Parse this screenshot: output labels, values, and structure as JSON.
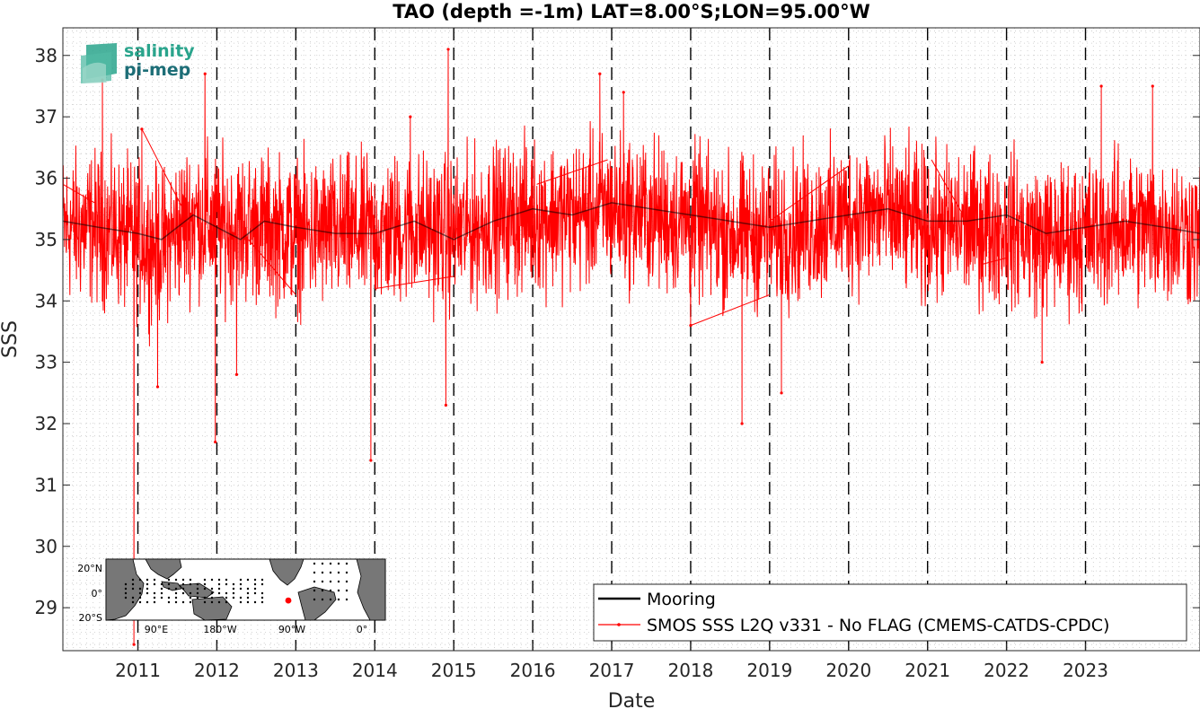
{
  "logo": {
    "line1": "salinity",
    "line2": "pi-mep"
  },
  "chart_data": {
    "type": "line",
    "title": "TAO (depth =-1m) LAT=8.00°S;LON=95.00°W",
    "xlabel": "Date",
    "ylabel": "SSS",
    "xlim": [
      2010.05,
      2024.45
    ],
    "ylim": [
      28.3,
      38.45
    ],
    "x_ticks": [
      2011,
      2012,
      2013,
      2014,
      2015,
      2016,
      2017,
      2018,
      2019,
      2020,
      2021,
      2022,
      2023
    ],
    "y_ticks": [
      29,
      30,
      31,
      32,
      33,
      34,
      35,
      36,
      37,
      38
    ],
    "grid": "minor dotted",
    "year_markers": "dashed vertical lines at each year",
    "legend_position": "bottom-right",
    "legend": [
      "Mooring",
      "SMOS SSS L2Q v331 - No FLAG  (CMEMS-CATDS-CPDC)"
    ],
    "colors": {
      "mooring": "#000000",
      "smos": "#ff0000"
    },
    "series": [
      {
        "name": "Mooring",
        "x": [
          2010.05,
          2010.5,
          2011.0,
          2011.3,
          2011.7,
          2012.0,
          2012.3,
          2012.6,
          2013.0,
          2013.5,
          2014.0,
          2014.5,
          2015.0,
          2015.5,
          2016.0,
          2016.5,
          2017.0,
          2017.5,
          2018.0,
          2018.5,
          2019.0,
          2019.5,
          2020.0,
          2020.5,
          2021.0,
          2021.5,
          2022.0,
          2022.5,
          2023.0,
          2023.5,
          2024.0,
          2024.45
        ],
        "y": [
          35.3,
          35.2,
          35.1,
          35.0,
          35.4,
          35.2,
          35.0,
          35.3,
          35.2,
          35.1,
          35.1,
          35.3,
          35.0,
          35.3,
          35.5,
          35.4,
          35.6,
          35.5,
          35.4,
          35.3,
          35.2,
          35.3,
          35.4,
          35.5,
          35.3,
          35.3,
          35.4,
          35.1,
          35.2,
          35.3,
          35.2,
          35.1
        ]
      },
      {
        "name": "SMOS SSS L2Q v331 - No FLAG  (CMEMS-CATDS-CPDC)",
        "baseline": [
          [
            2010.05,
            35.2
          ],
          [
            2010.5,
            35.2
          ],
          [
            2011.0,
            35.0
          ],
          [
            2011.3,
            34.9
          ],
          [
            2011.7,
            35.4
          ],
          [
            2012.0,
            35.2
          ],
          [
            2012.5,
            35.2
          ],
          [
            2013.0,
            35.1
          ],
          [
            2013.5,
            35.1
          ],
          [
            2014.0,
            35.1
          ],
          [
            2014.5,
            35.2
          ],
          [
            2015.0,
            35.1
          ],
          [
            2015.5,
            35.3
          ],
          [
            2016.0,
            35.4
          ],
          [
            2016.5,
            35.4
          ],
          [
            2017.0,
            35.5
          ],
          [
            2017.5,
            35.4
          ],
          [
            2018.0,
            35.3
          ],
          [
            2018.5,
            35.1
          ],
          [
            2019.0,
            35.1
          ],
          [
            2019.5,
            35.2
          ],
          [
            2020.0,
            35.4
          ],
          [
            2020.5,
            35.4
          ],
          [
            2021.0,
            35.2
          ],
          [
            2021.5,
            35.2
          ],
          [
            2022.0,
            35.2
          ],
          [
            2022.5,
            35.0
          ],
          [
            2023.0,
            35.1
          ],
          [
            2023.5,
            35.2
          ],
          [
            2024.0,
            35.2
          ],
          [
            2024.45,
            35.1
          ]
        ],
        "spread": 0.7,
        "spikes": [
          [
            2010.55,
            37.6
          ],
          [
            2010.95,
            28.4
          ],
          [
            2011.05,
            36.8
          ],
          [
            2011.25,
            32.6
          ],
          [
            2011.85,
            37.7
          ],
          [
            2011.98,
            31.7
          ],
          [
            2012.25,
            32.8
          ],
          [
            2013.95,
            31.4
          ],
          [
            2014.45,
            37.0
          ],
          [
            2014.9,
            32.3
          ],
          [
            2014.93,
            38.1
          ],
          [
            2016.85,
            37.7
          ],
          [
            2017.15,
            37.4
          ],
          [
            2018.0,
            33.6
          ],
          [
            2018.65,
            32.0
          ],
          [
            2019.15,
            32.5
          ],
          [
            2022.45,
            33.0
          ],
          [
            2023.2,
            37.5
          ],
          [
            2023.85,
            37.5
          ]
        ],
        "gap_segments": [
          [
            [
              2010.05,
              35.9
            ],
            [
              2010.45,
              35.6
            ]
          ],
          [
            [
              2011.05,
              36.8
            ],
            [
              2011.65,
              35.3
            ]
          ],
          [
            [
              2012.4,
              35.0
            ],
            [
              2013.0,
              34.1
            ]
          ],
          [
            [
              2014.0,
              34.2
            ],
            [
              2015.0,
              34.4
            ]
          ],
          [
            [
              2016.05,
              35.9
            ],
            [
              2016.95,
              36.3
            ]
          ],
          [
            [
              2018.0,
              33.6
            ],
            [
              2019.0,
              34.1
            ]
          ],
          [
            [
              2019.0,
              35.3
            ],
            [
              2020.0,
              36.2
            ]
          ],
          [
            [
              2021.05,
              36.3
            ],
            [
              2021.45,
              35.4
            ]
          ],
          [
            [
              2021.7,
              34.6
            ],
            [
              2022.0,
              34.7
            ]
          ]
        ]
      }
    ],
    "inset_map": {
      "lat_ticks": [
        "20°N",
        "0°",
        "20°S"
      ],
      "lon_ticks": [
        "90°E",
        "180°W",
        "90°W",
        "0°"
      ],
      "marker": {
        "lat": -8,
        "lon": -95,
        "color": "#ff0000"
      }
    }
  }
}
